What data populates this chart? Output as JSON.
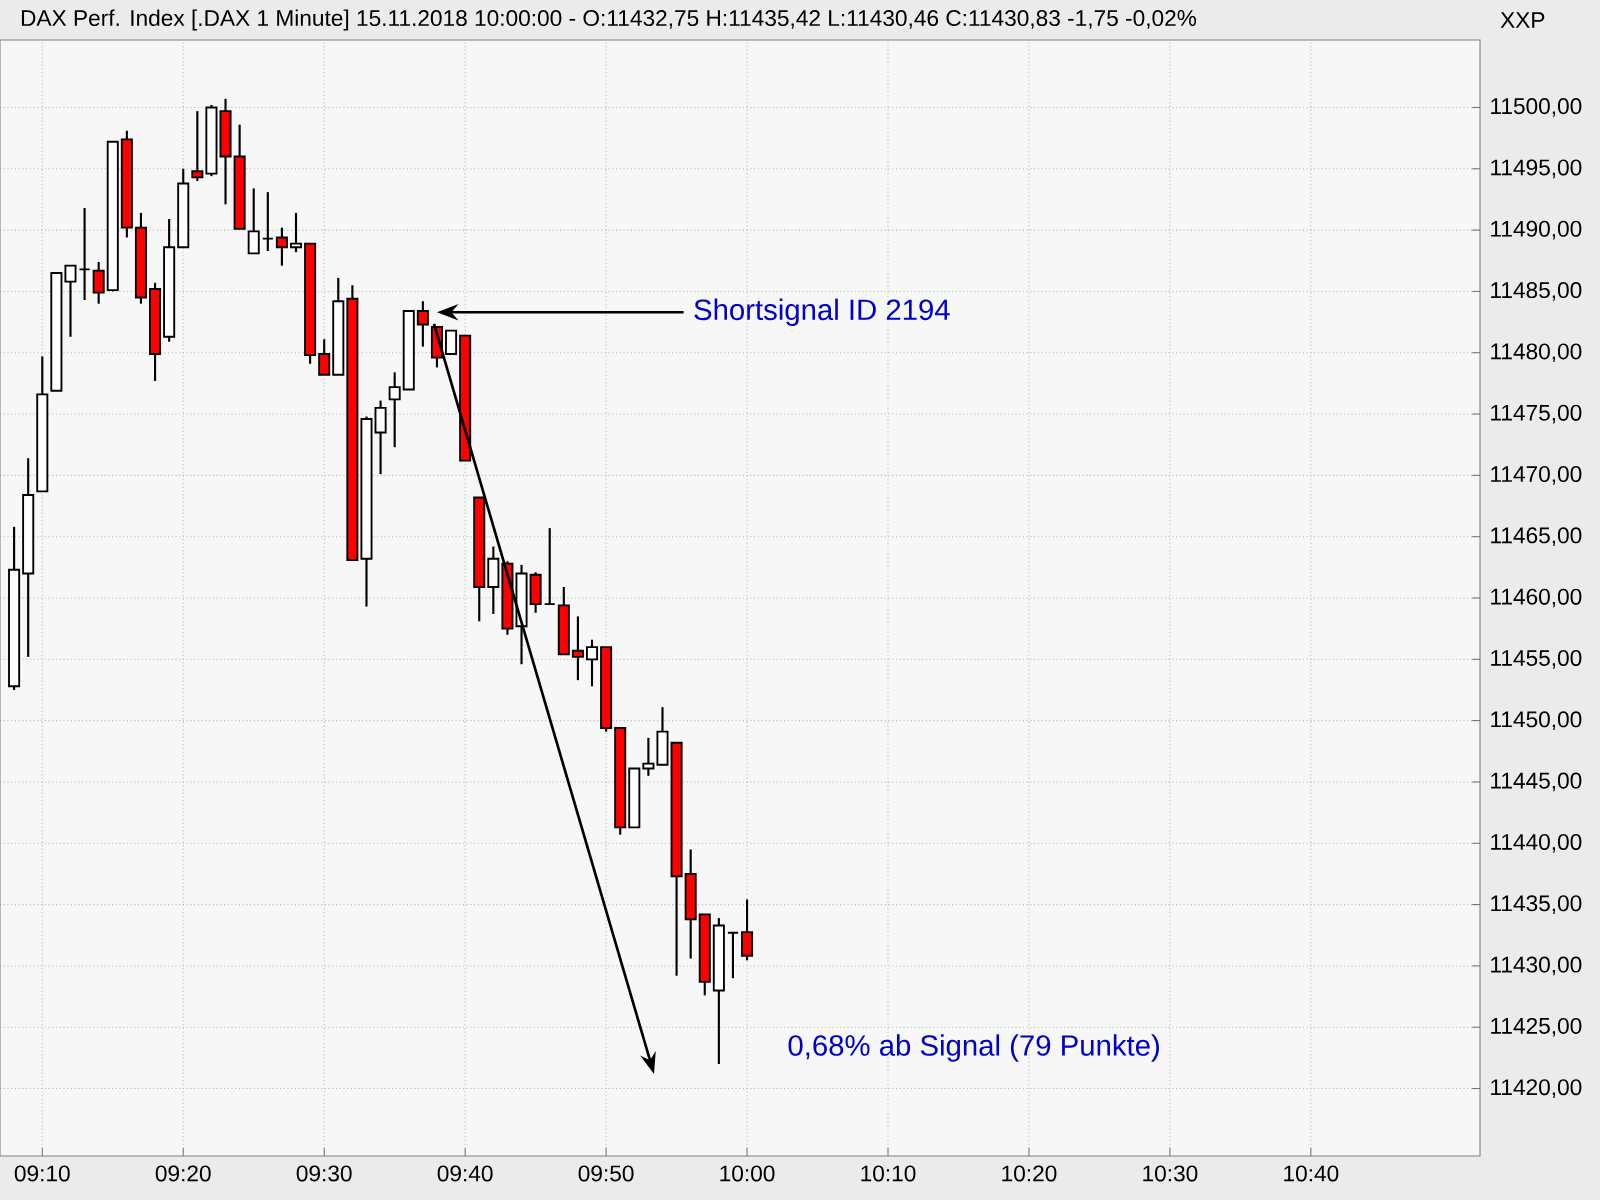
{
  "chart_data": {
    "type": "candlestick",
    "title": "DAX Perf. Index [.DAX  1 Minute] 15.11.2018 10:00:00 - O:11432,75 H:11435,42 L:11430,46 C:11430,83 -1,75 -0,02%",
    "x": [
      "2018-11-15T09:08",
      "2018-11-15T09:09",
      "2018-11-15T09:10",
      "2018-11-15T09:11",
      "2018-11-15T09:12",
      "2018-11-15T09:13",
      "2018-11-15T09:14",
      "2018-11-15T09:15",
      "2018-11-15T09:16",
      "2018-11-15T09:17",
      "2018-11-15T09:18",
      "2018-11-15T09:19",
      "2018-11-15T09:20",
      "2018-11-15T09:21",
      "2018-11-15T09:22",
      "2018-11-15T09:23",
      "2018-11-15T09:24",
      "2018-11-15T09:25",
      "2018-11-15T09:26",
      "2018-11-15T09:27",
      "2018-11-15T09:28",
      "2018-11-15T09:29",
      "2018-11-15T09:30",
      "2018-11-15T09:31",
      "2018-11-15T09:32",
      "2018-11-15T09:33",
      "2018-11-15T09:34",
      "2018-11-15T09:35",
      "2018-11-15T09:36",
      "2018-11-15T09:37",
      "2018-11-15T09:38",
      "2018-11-15T09:39",
      "2018-11-15T09:40",
      "2018-11-15T09:41",
      "2018-11-15T09:42",
      "2018-11-15T09:43",
      "2018-11-15T09:44",
      "2018-11-15T09:45",
      "2018-11-15T09:46",
      "2018-11-15T09:47",
      "2018-11-15T09:48",
      "2018-11-15T09:49",
      "2018-11-15T09:50",
      "2018-11-15T09:51",
      "2018-11-15T09:52",
      "2018-11-15T09:53",
      "2018-11-15T09:54",
      "2018-11-15T09:55",
      "2018-11-15T09:56",
      "2018-11-15T09:57",
      "2018-11-15T09:58",
      "2018-11-15T09:59",
      "2018-11-15T10:00"
    ],
    "ohlc": [
      [
        11452.8,
        11465.8,
        11452.5,
        11462.3
      ],
      [
        11462.0,
        11471.4,
        11455.2,
        11468.4
      ],
      [
        11468.7,
        11479.7,
        11468.7,
        11476.6
      ],
      [
        11476.9,
        11486.5,
        11476.9,
        11486.5
      ],
      [
        11485.8,
        11487.1,
        11481.3,
        11487.1
      ],
      [
        11486.8,
        11491.8,
        11484.3,
        11486.8
      ],
      [
        11486.7,
        11487.4,
        11484.0,
        11484.9
      ],
      [
        11485.1,
        11497.2,
        11485.0,
        11497.2
      ],
      [
        11497.4,
        11498.1,
        11489.4,
        11490.2
      ],
      [
        11490.2,
        11491.4,
        11484.0,
        11484.5
      ],
      [
        11485.2,
        11485.7,
        11477.7,
        11479.9
      ],
      [
        11481.3,
        11490.9,
        11480.9,
        11488.6
      ],
      [
        11488.6,
        11495.0,
        11488.6,
        11493.8
      ],
      [
        11494.8,
        11499.7,
        11494.0,
        11494.3
      ],
      [
        11494.6,
        11500.2,
        11494.4,
        11500.0
      ],
      [
        11499.7,
        11500.7,
        11492.1,
        11496.0
      ],
      [
        11496.0,
        11498.6,
        11490.1,
        11490.1
      ],
      [
        11488.1,
        11493.4,
        11488.1,
        11489.9
      ],
      [
        11489.3,
        11493.1,
        11488.3,
        11489.3
      ],
      [
        11489.4,
        11490.2,
        11487.1,
        11488.6
      ],
      [
        11488.6,
        11491.4,
        11488.2,
        11488.9
      ],
      [
        11488.9,
        11488.9,
        11479.1,
        11479.8
      ],
      [
        11479.9,
        11481.1,
        11478.2,
        11478.2
      ],
      [
        11478.2,
        11486.1,
        11478.2,
        11484.2
      ],
      [
        11484.4,
        11485.5,
        11463.1,
        11463.1
      ],
      [
        11463.2,
        11474.8,
        11459.3,
        11474.6
      ],
      [
        11473.5,
        11476.1,
        11470.1,
        11475.5
      ],
      [
        11476.2,
        11478.4,
        11472.3,
        11477.2
      ],
      [
        11477.0,
        11483.4,
        11477.0,
        11483.4
      ],
      [
        11483.4,
        11484.2,
        11480.5,
        11482.3
      ],
      [
        11482.1,
        11482.1,
        11478.8,
        11479.6
      ],
      [
        11479.9,
        11481.8,
        11479.9,
        11481.8
      ],
      [
        11481.4,
        11481.4,
        11471.2,
        11471.2
      ],
      [
        11468.2,
        11468.2,
        11458.1,
        11460.9
      ],
      [
        11460.9,
        11464.2,
        11458.7,
        11463.2
      ],
      [
        11462.8,
        11463.0,
        11457.0,
        11457.5
      ],
      [
        11457.7,
        11462.7,
        11454.6,
        11462.0
      ],
      [
        11461.9,
        11462.1,
        11458.8,
        11459.5
      ],
      [
        11459.5,
        11465.7,
        11459.5,
        11459.5
      ],
      [
        11459.4,
        11460.9,
        11455.4,
        11455.4
      ],
      [
        11455.7,
        11458.5,
        11453.3,
        11455.2
      ],
      [
        11455.0,
        11456.6,
        11452.8,
        11456.0
      ],
      [
        11456.0,
        11456.0,
        11449.1,
        11449.4
      ],
      [
        11449.4,
        11449.4,
        11440.7,
        11441.3
      ],
      [
        11441.3,
        11446.1,
        11441.3,
        11446.1
      ],
      [
        11446.1,
        11448.6,
        11445.5,
        11446.5
      ],
      [
        11446.4,
        11451.1,
        11446.4,
        11449.1
      ],
      [
        11448.2,
        11448.2,
        11429.2,
        11437.3
      ],
      [
        11437.5,
        11439.5,
        11430.6,
        11433.8
      ],
      [
        11434.2,
        11434.2,
        11427.6,
        11428.7
      ],
      [
        11428.0,
        11433.9,
        11422.0,
        11433.3
      ],
      [
        11432.7,
        11432.7,
        11429.0,
        11432.7
      ],
      [
        11432.75,
        11435.42,
        11430.46,
        11430.83
      ]
    ],
    "xlim": [
      "2018-11-15T09:07",
      "2018-11-15T10:52"
    ],
    "xticks": [
      {
        "value": "2018-11-15T09:10",
        "label": "09:10"
      },
      {
        "value": "2018-11-15T09:20",
        "label": "09:20"
      },
      {
        "value": "2018-11-15T09:30",
        "label": "09:30"
      },
      {
        "value": "2018-11-15T09:40",
        "label": "09:40"
      },
      {
        "value": "2018-11-15T09:50",
        "label": "09:50"
      },
      {
        "value": "2018-11-15T10:00",
        "label": "10:00"
      },
      {
        "value": "2018-11-15T10:10",
        "label": "10:10"
      },
      {
        "value": "2018-11-15T10:20",
        "label": "10:20"
      },
      {
        "value": "2018-11-15T10:30",
        "label": "10:30"
      },
      {
        "value": "2018-11-15T10:40",
        "label": "10:40"
      }
    ],
    "ylim": [
      11414.5,
      11505.5
    ],
    "yticks": [
      {
        "value": 11420,
        "label": "11420,00"
      },
      {
        "value": 11425,
        "label": "11425,00"
      },
      {
        "value": 11430,
        "label": "11430,00"
      },
      {
        "value": 11435,
        "label": "11435,00"
      },
      {
        "value": 11440,
        "label": "11440,00"
      },
      {
        "value": 11445,
        "label": "11445,00"
      },
      {
        "value": 11450,
        "label": "11450,00"
      },
      {
        "value": 11455,
        "label": "11455,00"
      },
      {
        "value": 11460,
        "label": "11460,00"
      },
      {
        "value": 11465,
        "label": "11465,00"
      },
      {
        "value": 11470,
        "label": "11470,00"
      },
      {
        "value": 11475,
        "label": "11475,00"
      },
      {
        "value": 11480,
        "label": "11480,00"
      },
      {
        "value": 11485,
        "label": "11485,00"
      },
      {
        "value": 11490,
        "label": "11490,00"
      },
      {
        "value": 11495,
        "label": "11495,00"
      },
      {
        "value": 11500,
        "label": "11500,00"
      }
    ],
    "grid": true,
    "annotations": [
      {
        "text": "Shortsignal ID 2194",
        "x": "2018-11-15T09:38",
        "y": 11483.3
      },
      "0,68% ab Signal (79 Punkte)",
      "XXP"
    ]
  }
}
